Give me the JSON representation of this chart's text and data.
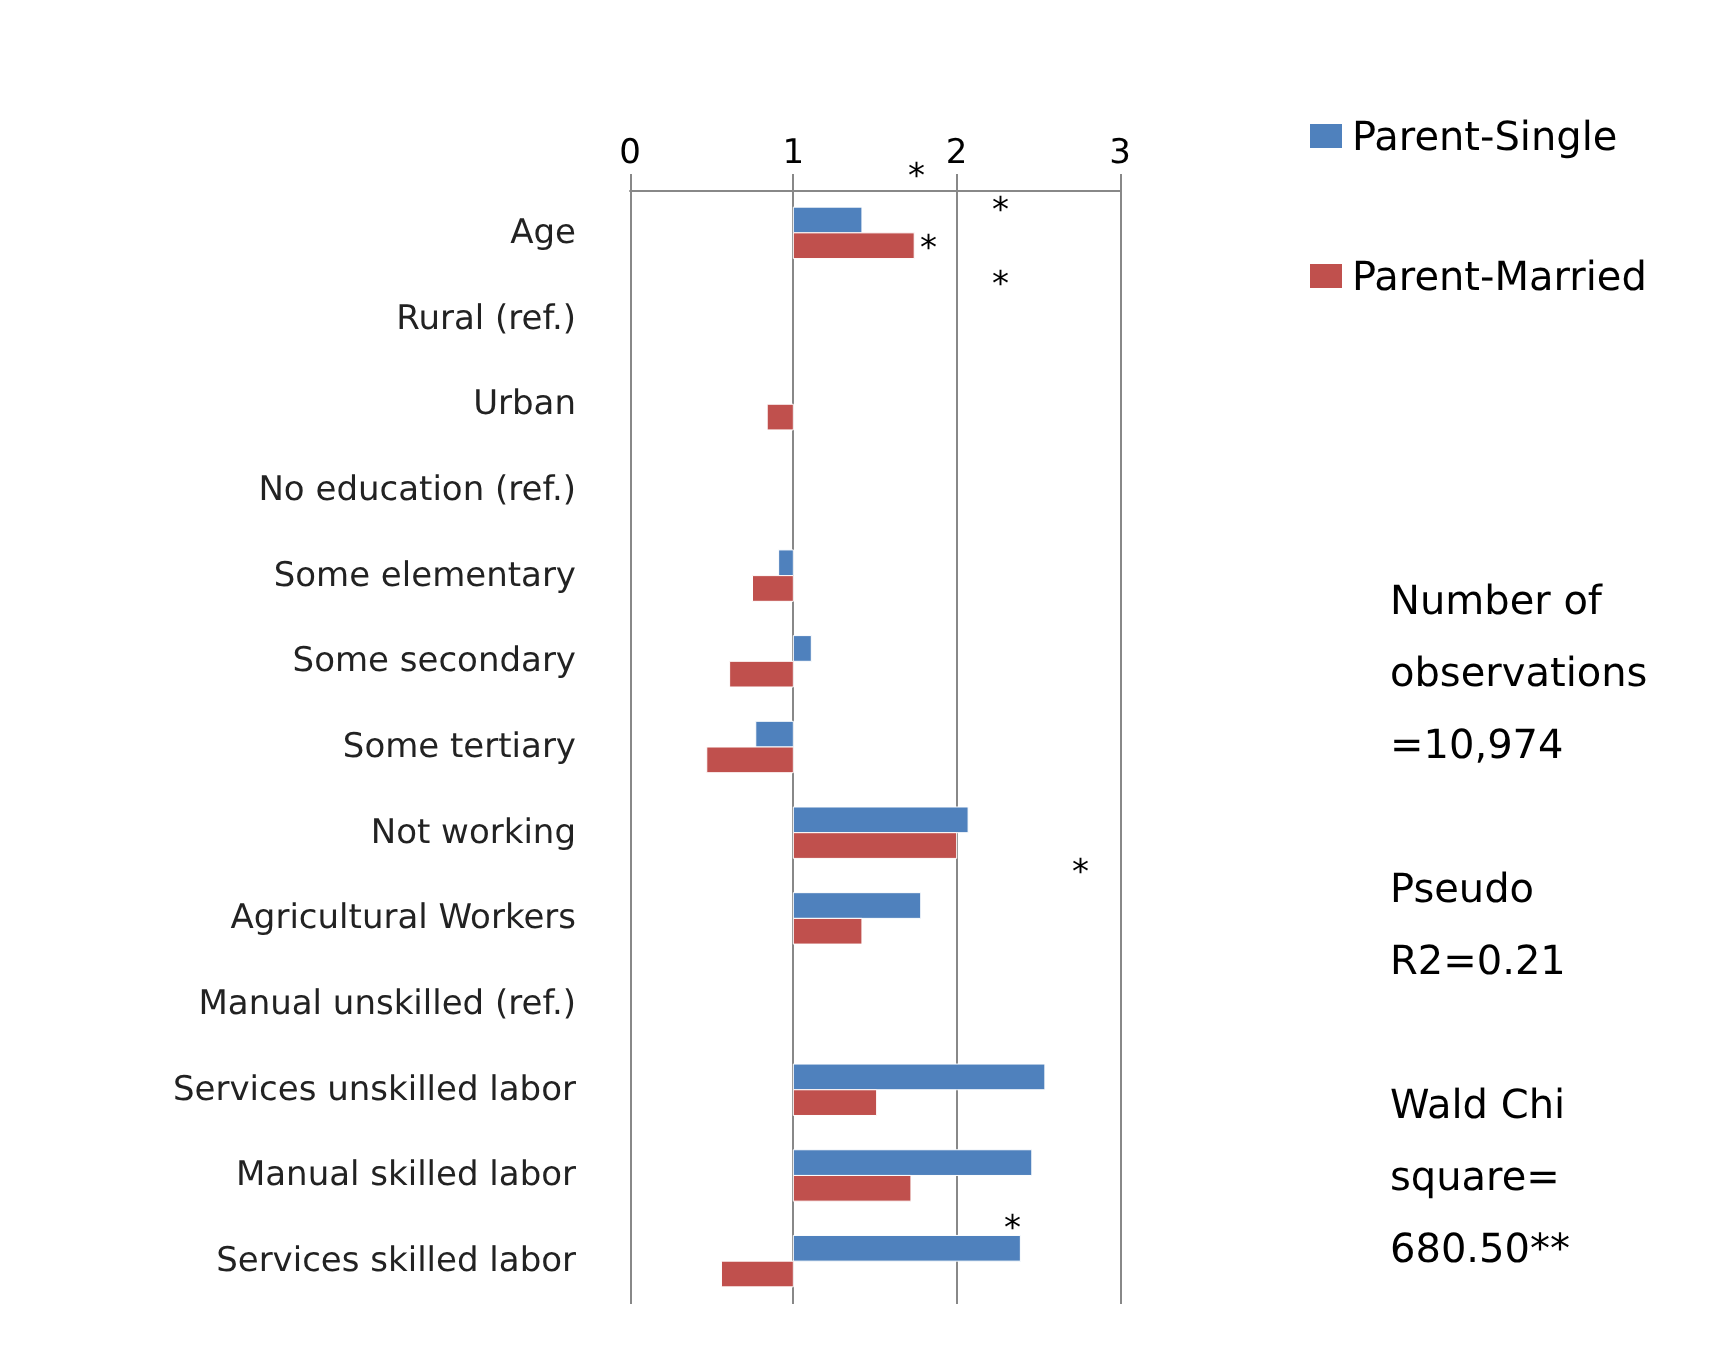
{
  "chart_data": {
    "type": "bar",
    "orientation": "horizontal",
    "categories": [
      "Age",
      "Rural (ref.)",
      "Urban",
      "No education (ref.)",
      "Some elementary",
      "Some secondary",
      "Some tertiary",
      "Not working",
      "Agricultural Workers",
      "Manual unskilled (ref.)",
      "Services unskilled labor",
      "Manual skilled labor",
      "Services skilled labor"
    ],
    "series": [
      {
        "name": "Parent-Single",
        "color": "#4f81bd",
        "base": [
          1,
          null,
          null,
          null,
          1,
          1,
          1,
          1,
          1,
          null,
          1,
          1,
          1
        ],
        "values": [
          0.42,
          null,
          null,
          null,
          -0.09,
          0.11,
          -0.23,
          1.07,
          0.78,
          null,
          1.54,
          1.46,
          1.39
        ]
      },
      {
        "name": "Parent-Married",
        "color": "#c0504d",
        "base": [
          1,
          null,
          1,
          null,
          1,
          1,
          1,
          1,
          1,
          null,
          1,
          1,
          1
        ],
        "values": [
          0.74,
          null,
          -0.16,
          null,
          -0.25,
          -0.39,
          -0.53,
          1.0,
          0.42,
          null,
          0.51,
          0.72,
          -0.44
        ]
      }
    ],
    "xlim": [
      0,
      3
    ],
    "xticks": [
      0,
      1,
      2,
      3
    ],
    "grid": "x",
    "legend": "right",
    "annotations": [
      "*",
      "*",
      "*",
      "*",
      "*",
      "*",
      "Number of observations =10,974",
      "Pseudo R2=0.21",
      "Wald Chi square= 680.50**"
    ]
  }
}
